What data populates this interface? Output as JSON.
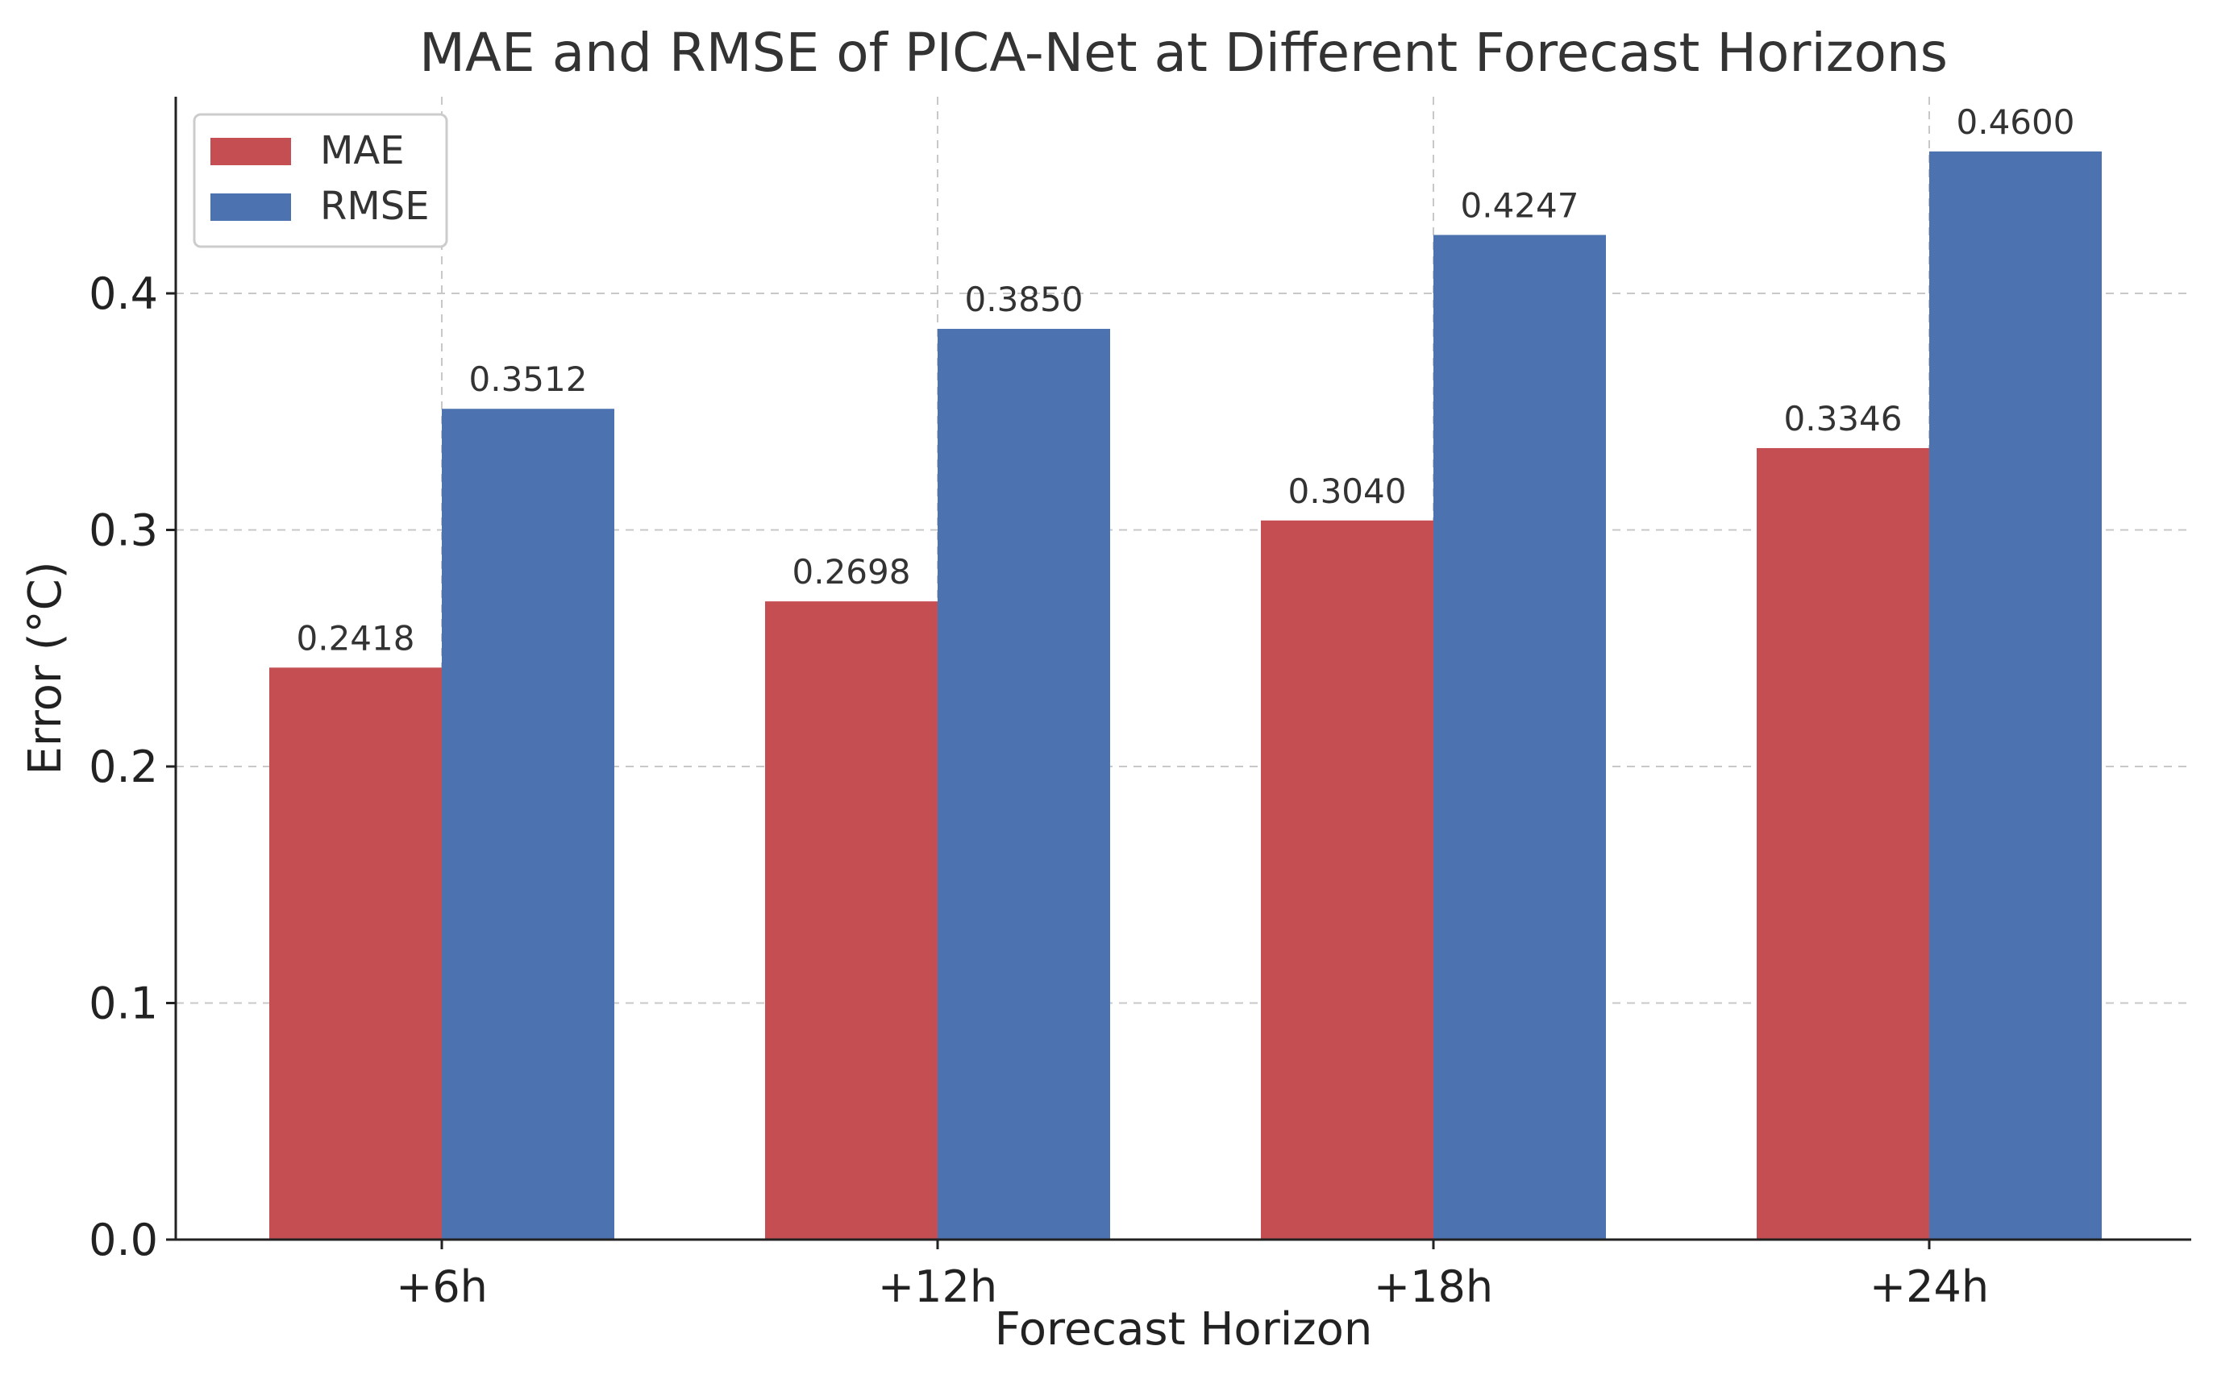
{
  "chart_data": {
    "type": "bar",
    "title": "MAE and RMSE of PICA-Net at Different Forecast Horizons",
    "xlabel": "Forecast Horizon",
    "ylabel": "Error (°C)",
    "categories": [
      "+6h",
      "+12h",
      "+18h",
      "+24h"
    ],
    "series": [
      {
        "name": "MAE",
        "color": "#c44e52",
        "values": [
          0.2418,
          0.2698,
          0.304,
          0.3346
        ],
        "labels": [
          "0.2418",
          "0.2698",
          "0.3040",
          "0.3346"
        ]
      },
      {
        "name": "RMSE",
        "color": "#4c72b0",
        "values": [
          0.3512,
          0.385,
          0.4247,
          0.46
        ],
        "labels": [
          "0.3512",
          "0.3850",
          "0.4247",
          "0.4600"
        ]
      }
    ],
    "ylim": [
      0,
      0.48
    ],
    "yticks": [
      0.0,
      0.1,
      0.2,
      0.3,
      0.4
    ],
    "ytick_labels": [
      "0.0",
      "0.1",
      "0.2",
      "0.3",
      "0.4"
    ],
    "grid": true,
    "legend_position": "top-left"
  }
}
